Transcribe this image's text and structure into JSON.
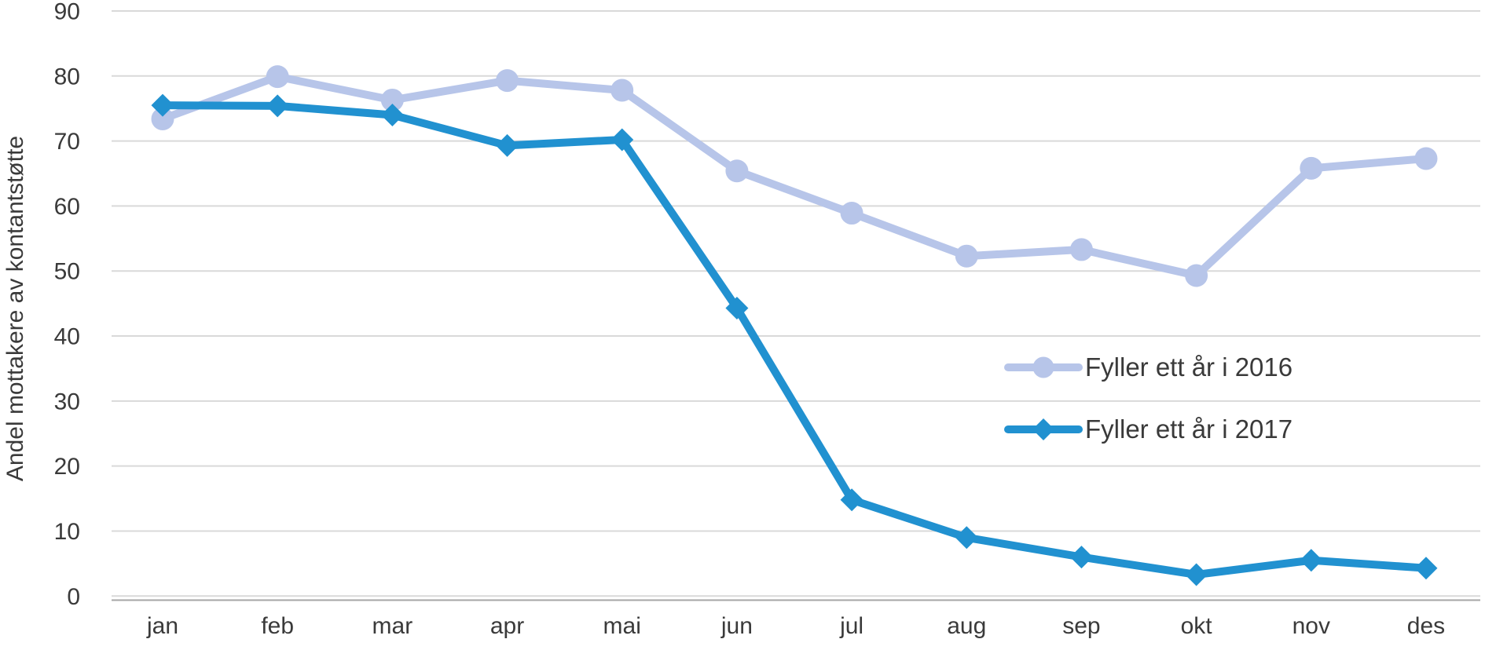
{
  "chart_data": {
    "type": "line",
    "title": "",
    "ylabel": "Andel mottakere av kontantstøtte",
    "xlabel": "",
    "ylim": [
      0,
      90
    ],
    "y_ticks": [
      0,
      10,
      20,
      30,
      40,
      50,
      60,
      70,
      80,
      90
    ],
    "grid": true,
    "legend_position": "center-right",
    "categories": [
      "jan",
      "feb",
      "mar",
      "apr",
      "mai",
      "jun",
      "jul",
      "aug",
      "sep",
      "okt",
      "nov",
      "des"
    ],
    "series": [
      {
        "name": "Fyller ett år i 2016",
        "color": "#b7c5e9",
        "marker": "circle",
        "values": [
          73.4,
          79.9,
          76.3,
          79.3,
          77.8,
          65.4,
          58.9,
          52.3,
          53.3,
          49.3,
          65.8,
          67.3
        ]
      },
      {
        "name": "Fyller ett år i 2017",
        "color": "#2191d0",
        "marker": "diamond",
        "values": [
          75.5,
          75.4,
          74.0,
          69.3,
          70.2,
          44.3,
          14.8,
          9.0,
          6.0,
          3.3,
          5.5,
          4.3
        ]
      }
    ],
    "style": {
      "grid_color": "#d9d9d9",
      "axis_color": "#a6a6a6",
      "text_color": "#3a3a3a",
      "background": "#ffffff"
    }
  }
}
